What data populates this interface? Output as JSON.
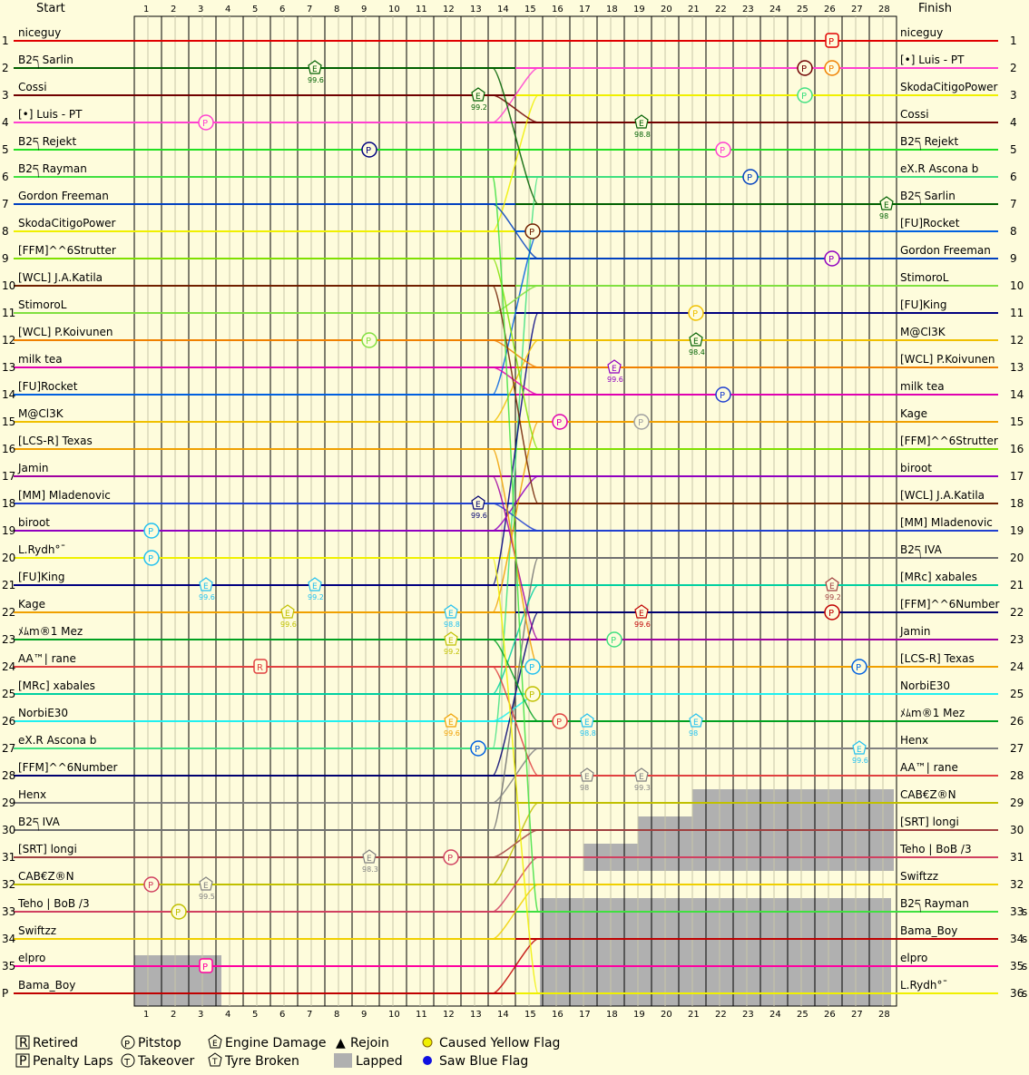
{
  "chart_data": {
    "type": "line",
    "header": {
      "start": "Start",
      "finish": "Finish"
    },
    "laps": 28,
    "position_labels": [
      "1",
      "2",
      "3",
      "4",
      "5",
      "6",
      "7",
      "8",
      "9",
      "10",
      "11",
      "12",
      "13",
      "14",
      "15",
      "16",
      "17",
      "18",
      "19",
      "20",
      "21",
      "22",
      "23",
      "24",
      "25",
      "26",
      "27",
      "28",
      "29",
      "30",
      "31",
      "32",
      "33",
      "34",
      "35",
      "P"
    ],
    "right_position_labels": [
      "1",
      "2",
      "3",
      "4",
      "5",
      "6",
      "7",
      "8",
      "9",
      "10",
      "11",
      "12",
      "13",
      "14",
      "15",
      "16",
      "17",
      "18",
      "19",
      "20",
      "21",
      "22",
      "23",
      "24",
      "25",
      "26",
      "27",
      "28",
      "29",
      "30",
      "31",
      "32",
      "33",
      "34",
      "35",
      "36"
    ],
    "lapped_suffix": "s",
    "start_grid": [
      {
        "name": "niceguy",
        "color": "#e00000"
      },
      {
        "name": "B2ད Sarlin",
        "color": "#006000"
      },
      {
        "name": "Cossi",
        "color": "#700000"
      },
      {
        "name": "[•] Luis - PT",
        "color": "#ff40d0"
      },
      {
        "name": "B2ད Rejekt",
        "color": "#20e020"
      },
      {
        "name": "B2ད Rayman",
        "color": "#40e040"
      },
      {
        "name": "Gordon Freeman",
        "color": "#0040c0"
      },
      {
        "name": "SkodaCitigoPower",
        "color": "#f0f000"
      },
      {
        "name": "[FFM]^^6Strutter",
        "color": "#80e000"
      },
      {
        "name": "[WCL] J.A.Katila",
        "color": "#702000"
      },
      {
        "name": "StimoroL",
        "color": "#80e040"
      },
      {
        "name": "[WCL] P.Koivunen",
        "color": "#f08000"
      },
      {
        "name": "milk tea",
        "color": "#e000b0"
      },
      {
        "name": "[FU]Rocket",
        "color": "#0060e0"
      },
      {
        "name": "M@Cl3K",
        "color": "#f0c000"
      },
      {
        "name": "[LCS-R] Texas",
        "color": "#f0a000"
      },
      {
        "name": "Jamin",
        "color": "#a000a0"
      },
      {
        "name": "[MM] Mladenovic",
        "color": "#2040d0"
      },
      {
        "name": "biroot",
        "color": "#9000c0"
      },
      {
        "name": "L.Rydh°¯",
        "color": "#f0f000"
      },
      {
        "name": "[FU]King",
        "color": "#000080"
      },
      {
        "name": "Kage",
        "color": "#f0a000"
      },
      {
        "name": "ﾒﾑm®1 Mez",
        "color": "#00a020"
      },
      {
        "name": "AA™| rane",
        "color": "#e04040"
      },
      {
        "name": "[MRc] xabales",
        "color": "#00d0a0"
      },
      {
        "name": "NorbiE30",
        "color": "#20f0f0"
      },
      {
        "name": "eX.R Ascona b",
        "color": "#40e080"
      },
      {
        "name": "[FFM]^^6Number",
        "color": "#000070"
      },
      {
        "name": "Henx",
        "color": "#808080"
      },
      {
        "name": "B2ད IVA",
        "color": "#707070"
      },
      {
        "name": "[SRT] longi",
        "color": "#a04040"
      },
      {
        "name": "CAB€Z®N",
        "color": "#c0c000"
      },
      {
        "name": "Teho | BoB /3",
        "color": "#d04060"
      },
      {
        "name": "Swiftzz",
        "color": "#f0d000"
      },
      {
        "name": "elpro",
        "color": "#ff00a0"
      },
      {
        "name": "Bama_Boy",
        "color": "#c00000"
      }
    ],
    "finish_order": [
      {
        "name": "niceguy",
        "color": "#e00000"
      },
      {
        "name": "[•] Luis - PT",
        "color": "#ff40d0"
      },
      {
        "name": "SkodaCitigoPower",
        "color": "#f0f000"
      },
      {
        "name": "Cossi",
        "color": "#700000"
      },
      {
        "name": "B2ད Rejekt",
        "color": "#20e020"
      },
      {
        "name": "eX.R Ascona b",
        "color": "#40e080"
      },
      {
        "name": "B2ད Sarlin",
        "color": "#006000"
      },
      {
        "name": "[FU]Rocket",
        "color": "#0060e0"
      },
      {
        "name": "Gordon Freeman",
        "color": "#0040c0"
      },
      {
        "name": "StimoroL",
        "color": "#80e040"
      },
      {
        "name": "[FU]King",
        "color": "#000080"
      },
      {
        "name": "M@Cl3K",
        "color": "#f0c000"
      },
      {
        "name": "[WCL] P.Koivunen",
        "color": "#f08000"
      },
      {
        "name": "milk tea",
        "color": "#e000b0"
      },
      {
        "name": "Kage",
        "color": "#f0a000"
      },
      {
        "name": "[FFM]^^6Strutter",
        "color": "#80e000"
      },
      {
        "name": "biroot",
        "color": "#9000c0"
      },
      {
        "name": "[WCL] J.A.Katila",
        "color": "#702000"
      },
      {
        "name": "[MM] Mladenovic",
        "color": "#2040d0"
      },
      {
        "name": "B2ད IVA",
        "color": "#707070"
      },
      {
        "name": "[MRc] xabales",
        "color": "#00d0a0"
      },
      {
        "name": "[FFM]^^6Number",
        "color": "#000070"
      },
      {
        "name": "Jamin",
        "color": "#a000a0"
      },
      {
        "name": "[LCS-R] Texas",
        "color": "#f0a000"
      },
      {
        "name": "NorbiE30",
        "color": "#20f0f0"
      },
      {
        "name": "ﾒﾑm®1 Mez",
        "color": "#00a020"
      },
      {
        "name": "Henx",
        "color": "#808080"
      },
      {
        "name": "AA™| rane",
        "color": "#e04040"
      },
      {
        "name": "CAB€Z®N",
        "color": "#c0c000"
      },
      {
        "name": "[SRT] longi",
        "color": "#a04040"
      },
      {
        "name": "Teho | BoB /3",
        "color": "#d04060"
      },
      {
        "name": "Swiftzz",
        "color": "#f0d000"
      },
      {
        "name": "B2ད Rayman",
        "color": "#40e040"
      },
      {
        "name": "Bama_Boy",
        "color": "#c00000"
      },
      {
        "name": "elpro",
        "color": "#ff00a0"
      },
      {
        "name": "L.Rydh°¯",
        "color": "#f0f000"
      }
    ],
    "events": [
      {
        "type": "penalty",
        "lap": 26,
        "pos": 1,
        "color": "#e00000"
      },
      {
        "type": "engine",
        "lap": 7,
        "pos": 2,
        "value": "99.6",
        "color": "#006000"
      },
      {
        "type": "pitstop",
        "lap": 25,
        "pos": 2,
        "color": "#700000"
      },
      {
        "type": "pitstop",
        "lap": 26,
        "pos": 2,
        "color": "#f08000"
      },
      {
        "type": "engine",
        "lap": 13,
        "pos": 3,
        "value": "99.2",
        "color": "#006000"
      },
      {
        "type": "pitstop",
        "lap": 25,
        "pos": 3,
        "color": "#40e080"
      },
      {
        "type": "pitstop",
        "lap": 3,
        "pos": 4,
        "color": "#ff40d0"
      },
      {
        "type": "engine",
        "lap": 19,
        "pos": 4,
        "value": "98.8",
        "color": "#006000"
      },
      {
        "type": "pitstop",
        "lap": 9,
        "pos": 5,
        "color": "#000080"
      },
      {
        "type": "pitstop",
        "lap": 22,
        "pos": 5,
        "color": "#ff40d0"
      },
      {
        "type": "pitstop",
        "lap": 23,
        "pos": 6,
        "color": "#0040c0"
      },
      {
        "type": "engine",
        "lap": 28,
        "pos": 7,
        "value": "98",
        "color": "#006000"
      },
      {
        "type": "pitstop",
        "lap": 15,
        "pos": 8,
        "color": "#702000"
      },
      {
        "type": "pitstop",
        "lap": 26,
        "pos": 9,
        "color": "#9000c0"
      },
      {
        "type": "pitstop",
        "lap": 21,
        "pos": 11,
        "color": "#f0c000"
      },
      {
        "type": "pitstop",
        "lap": 9,
        "pos": 12,
        "color": "#80e040"
      },
      {
        "type": "engine",
        "lap": 21,
        "pos": 12,
        "value": "98.4",
        "color": "#006000"
      },
      {
        "type": "engine",
        "lap": 18,
        "pos": 13,
        "value": "99.6",
        "color": "#9000c0"
      },
      {
        "type": "pitstop",
        "lap": 22,
        "pos": 14,
        "color": "#2040d0"
      },
      {
        "type": "pitstop",
        "lap": 16,
        "pos": 15,
        "color": "#e000b0"
      },
      {
        "type": "pitstop",
        "lap": 19,
        "pos": 15,
        "color": "#a0a0a0"
      },
      {
        "type": "engine",
        "lap": 13,
        "pos": 18,
        "value": "99.6",
        "color": "#000070"
      },
      {
        "type": "pitstop",
        "lap": 1,
        "pos": 19,
        "color": "#20c0f0"
      },
      {
        "type": "pitstop",
        "lap": 1,
        "pos": 20,
        "color": "#20c0f0"
      },
      {
        "type": "engine",
        "lap": 3,
        "pos": 21,
        "value": "99.6",
        "color": "#20c0f0"
      },
      {
        "type": "engine",
        "lap": 7,
        "pos": 21,
        "value": "99.2",
        "color": "#20c0f0"
      },
      {
        "type": "engine",
        "lap": 26,
        "pos": 21,
        "value": "99.2",
        "color": "#a04040"
      },
      {
        "type": "engine",
        "lap": 6,
        "pos": 22,
        "value": "99.6",
        "color": "#c0c000"
      },
      {
        "type": "engine",
        "lap": 12,
        "pos": 22,
        "value": "98.8",
        "color": "#20c0f0"
      },
      {
        "type": "engine",
        "lap": 19,
        "pos": 22,
        "value": "99.6",
        "color": "#c00000"
      },
      {
        "type": "pitstop",
        "lap": 26,
        "pos": 22,
        "color": "#c00000"
      },
      {
        "type": "engine",
        "lap": 12,
        "pos": 23,
        "value": "99.2",
        "color": "#c0c000"
      },
      {
        "type": "pitstop",
        "lap": 18,
        "pos": 23,
        "color": "#40e080"
      },
      {
        "type": "retired",
        "lap": 5,
        "pos": 24,
        "color": "#e04040"
      },
      {
        "type": "pitstop",
        "lap": 15,
        "pos": 24,
        "color": "#20c0f0"
      },
      {
        "type": "pitstop",
        "lap": 27,
        "pos": 24,
        "color": "#0060e0"
      },
      {
        "type": "pitstop",
        "lap": 15,
        "pos": 25,
        "color": "#c0c000"
      },
      {
        "type": "engine",
        "lap": 12,
        "pos": 26,
        "value": "99.6",
        "color": "#f0a000"
      },
      {
        "type": "pitstop",
        "lap": 16,
        "pos": 26,
        "color": "#e04040"
      },
      {
        "type": "engine",
        "lap": 17,
        "pos": 26,
        "value": "98.8",
        "color": "#20c0f0"
      },
      {
        "type": "engine",
        "lap": 21,
        "pos": 26,
        "value": "98",
        "color": "#20c0f0"
      },
      {
        "type": "pitstop",
        "lap": 13,
        "pos": 27,
        "color": "#0060e0"
      },
      {
        "type": "engine",
        "lap": 27,
        "pos": 27,
        "value": "99.6",
        "color": "#20c0f0"
      },
      {
        "type": "engine",
        "lap": 17,
        "pos": 28,
        "value": "98",
        "color": "#808080"
      },
      {
        "type": "engine",
        "lap": 19,
        "pos": 28,
        "value": "99.3",
        "color": "#808080"
      },
      {
        "type": "pitstop",
        "lap": 12,
        "pos": 31,
        "color": "#d04060"
      },
      {
        "type": "engine",
        "lap": 9,
        "pos": 31,
        "value": "98.3",
        "color": "#808080"
      },
      {
        "type": "pitstop",
        "lap": 1,
        "pos": 32,
        "color": "#d04060"
      },
      {
        "type": "engine",
        "lap": 3,
        "pos": 32,
        "value": "99.5",
        "color": "#808080"
      },
      {
        "type": "pitstop",
        "lap": 2,
        "pos": 33,
        "color": "#c0c000"
      },
      {
        "type": "penalty",
        "lap": 3,
        "pos": 35,
        "color": "#ff00a0"
      }
    ],
    "legend": [
      {
        "symbol": "R",
        "label": "Retired"
      },
      {
        "symbol": "P",
        "label": "Penalty Laps"
      },
      {
        "symbol": "P",
        "label": "Pitstop"
      },
      {
        "symbol": "T",
        "label": "Takeover"
      },
      {
        "symbol": "E",
        "label": "Engine Damage"
      },
      {
        "symbol": "T",
        "label": "Tyre Broken"
      },
      {
        "symbol": "▲",
        "label": "Rejoin"
      },
      {
        "symbol": "",
        "label": "Lapped"
      },
      {
        "symbol": "",
        "label": "Caused Yellow Flag"
      },
      {
        "symbol": "",
        "label": "Saw Blue Flag"
      }
    ],
    "colors": {
      "background": "#fefcdc",
      "grid": "#000000",
      "lapped": "#b0b0b0",
      "yellow_flag": "#f0f000",
      "blue_flag": "#1010e0"
    }
  }
}
